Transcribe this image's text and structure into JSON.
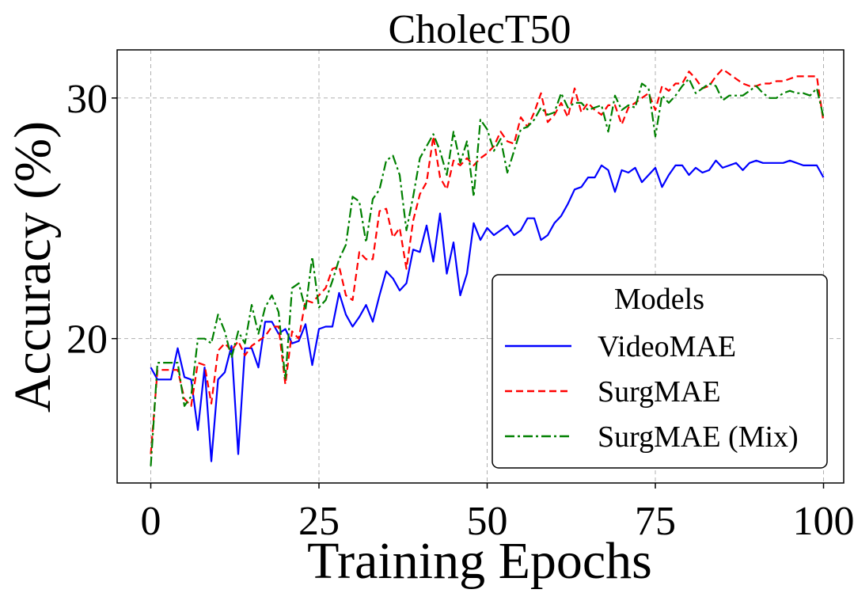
{
  "chart_data": {
    "type": "line",
    "title": "CholecT50",
    "xlabel": "Training Epochs",
    "ylabel": "Accuracy (%)",
    "xlim": [
      -5,
      103
    ],
    "ylim": [
      14.0,
      32.0
    ],
    "xticks": [
      0,
      25,
      50,
      75,
      100
    ],
    "xtick_labels": [
      "0",
      "25",
      "50",
      "75",
      "100"
    ],
    "yticks": [
      20,
      30
    ],
    "ytick_labels": [
      "20",
      "30"
    ],
    "grid": true,
    "legend": {
      "title": "Models",
      "position": "bottom-right"
    },
    "series": [
      {
        "name": "VideoMAE",
        "color": "#0000ff",
        "dash": "solid",
        "x": [
          0,
          1,
          2,
          3,
          4,
          5,
          6,
          7,
          8,
          9,
          10,
          11,
          12,
          13,
          14,
          15,
          16,
          17,
          18,
          19,
          20,
          21,
          22,
          23,
          24,
          25,
          26,
          27,
          28,
          29,
          30,
          31,
          32,
          33,
          34,
          35,
          36,
          37,
          38,
          39,
          40,
          41,
          42,
          43,
          44,
          45,
          46,
          47,
          48,
          49,
          50,
          51,
          52,
          53,
          54,
          55,
          56,
          57,
          58,
          59,
          60,
          61,
          62,
          63,
          64,
          65,
          66,
          67,
          68,
          69,
          70,
          71,
          72,
          73,
          74,
          75,
          76,
          77,
          78,
          79,
          80,
          81,
          82,
          83,
          84,
          85,
          86,
          87,
          88,
          89,
          90,
          91,
          92,
          93,
          94,
          95,
          96,
          97,
          98,
          99,
          100
        ],
        "values": [
          18.8,
          18.3,
          18.3,
          18.3,
          19.6,
          18.4,
          18.3,
          16.2,
          18.8,
          14.9,
          18.3,
          18.6,
          19.7,
          15.2,
          19.6,
          19.6,
          18.8,
          20.7,
          20.7,
          20.2,
          20.4,
          19.8,
          19.9,
          20.6,
          18.9,
          20.4,
          20.5,
          20.5,
          21.9,
          21.0,
          20.5,
          20.9,
          21.4,
          20.7,
          21.8,
          22.8,
          22.5,
          22.0,
          22.3,
          23.7,
          23.6,
          24.7,
          23.2,
          25.2,
          22.7,
          24.0,
          21.8,
          22.7,
          24.8,
          24.1,
          24.6,
          24.3,
          24.5,
          24.7,
          24.3,
          24.5,
          25.0,
          25.0,
          24.1,
          24.3,
          24.8,
          25.1,
          25.6,
          26.2,
          26.3,
          26.7,
          26.7,
          27.2,
          27.0,
          26.1,
          27.0,
          26.9,
          27.1,
          26.5,
          26.8,
          27.1,
          26.3,
          26.8,
          27.2,
          27.2,
          26.8,
          27.1,
          26.9,
          27.0,
          27.4,
          27.1,
          27.2,
          27.3,
          27.0,
          27.3,
          27.4,
          27.3,
          27.3,
          27.3,
          27.3,
          27.4,
          27.3,
          27.2,
          27.2,
          27.2,
          26.7
        ],
        "legend_label": "VideoMAE"
      },
      {
        "name": "SurgMAE",
        "color": "#ff0000",
        "dash": "dashed",
        "x": [
          0,
          1,
          2,
          3,
          4,
          5,
          6,
          7,
          8,
          9,
          10,
          11,
          12,
          13,
          14,
          15,
          16,
          17,
          18,
          19,
          20,
          21,
          22,
          23,
          24,
          25,
          26,
          27,
          28,
          29,
          30,
          31,
          32,
          33,
          34,
          35,
          36,
          37,
          38,
          39,
          40,
          41,
          42,
          43,
          44,
          45,
          46,
          47,
          48,
          49,
          50,
          51,
          52,
          53,
          54,
          55,
          56,
          57,
          58,
          59,
          60,
          61,
          62,
          63,
          64,
          65,
          66,
          67,
          68,
          69,
          70,
          71,
          72,
          73,
          74,
          75,
          76,
          77,
          78,
          79,
          80,
          81,
          82,
          83,
          84,
          85,
          86,
          87,
          88,
          89,
          90,
          91,
          92,
          93,
          94,
          95,
          96,
          97,
          98,
          99,
          100
        ],
        "values": [
          15.2,
          18.7,
          18.7,
          18.7,
          18.7,
          17.5,
          17.2,
          19.0,
          18.9,
          17.3,
          19.5,
          19.8,
          19.5,
          19.9,
          19.3,
          19.7,
          19.9,
          20.1,
          20.5,
          20.5,
          18.1,
          20.3,
          20.0,
          21.6,
          21.5,
          21.8,
          22.1,
          22.9,
          23.0,
          21.8,
          21.6,
          23.6,
          23.3,
          23.3,
          25.3,
          25.4,
          24.2,
          24.6,
          22.9,
          24.9,
          26.0,
          26.5,
          28.4,
          26.7,
          26.2,
          27.4,
          27.2,
          27.5,
          27.2,
          27.5,
          27.7,
          28.0,
          28.6,
          28.2,
          28.1,
          29.2,
          28.8,
          29.4,
          30.2,
          29.0,
          29.3,
          29.8,
          29.2,
          30.4,
          29.4,
          29.8,
          29.5,
          29.3,
          29.7,
          29.7,
          28.9,
          29.6,
          29.8,
          30.0,
          30.2,
          29.5,
          30.5,
          30.3,
          30.6,
          30.6,
          31.1,
          30.8,
          30.4,
          30.5,
          30.9,
          31.2,
          31.0,
          30.8,
          30.6,
          30.5,
          30.5,
          30.6,
          30.6,
          30.7,
          30.7,
          30.8,
          30.9,
          30.9,
          30.9,
          30.9,
          29.0
        ],
        "legend_label": "SurgMAE"
      },
      {
        "name": "SurgMAE (Mix)",
        "color": "#008000",
        "dash": "dashdot",
        "x": [
          0,
          1,
          2,
          3,
          4,
          5,
          6,
          7,
          8,
          9,
          10,
          11,
          12,
          13,
          14,
          15,
          16,
          17,
          18,
          19,
          20,
          21,
          22,
          23,
          24,
          25,
          26,
          27,
          28,
          29,
          30,
          31,
          32,
          33,
          34,
          35,
          36,
          37,
          38,
          39,
          40,
          41,
          42,
          43,
          44,
          45,
          46,
          47,
          48,
          49,
          50,
          51,
          52,
          53,
          54,
          55,
          56,
          57,
          58,
          59,
          60,
          61,
          62,
          63,
          64,
          65,
          66,
          67,
          68,
          69,
          70,
          71,
          72,
          73,
          74,
          75,
          76,
          77,
          78,
          79,
          80,
          81,
          82,
          83,
          84,
          85,
          86,
          87,
          88,
          89,
          90,
          91,
          92,
          93,
          94,
          95,
          96,
          97,
          98,
          99,
          100
        ],
        "values": [
          14.7,
          19.0,
          19.0,
          19.0,
          19.0,
          17.2,
          17.6,
          20.0,
          20.0,
          19.8,
          21.0,
          20.3,
          19.2,
          20.3,
          19.8,
          21.4,
          20.2,
          21.3,
          21.8,
          21.1,
          18.3,
          22.1,
          22.3,
          21.2,
          23.4,
          21.3,
          21.6,
          22.4,
          23.3,
          23.9,
          25.9,
          25.7,
          24.0,
          25.8,
          26.2,
          27.4,
          27.6,
          26.8,
          24.5,
          25.9,
          27.5,
          28.0,
          28.5,
          27.8,
          26.8,
          28.6,
          27.3,
          28.2,
          25.9,
          29.1,
          28.7,
          27.8,
          28.3,
          26.9,
          27.8,
          28.7,
          28.8,
          29.1,
          29.6,
          29.3,
          29.4,
          30.2,
          29.6,
          29.8,
          29.8,
          29.5,
          29.6,
          29.7,
          28.6,
          30.1,
          29.5,
          29.7,
          29.6,
          30.6,
          30.4,
          28.4,
          30.1,
          29.8,
          30.1,
          30.5,
          30.8,
          30.2,
          30.4,
          30.6,
          30.5,
          29.9,
          30.1,
          30.1,
          30.1,
          30.3,
          30.5,
          30.2,
          30.0,
          30.0,
          30.2,
          30.3,
          30.2,
          30.2,
          30.1,
          30.4,
          29.2
        ],
        "legend_label": "SurgMAE (Mix)"
      }
    ]
  }
}
